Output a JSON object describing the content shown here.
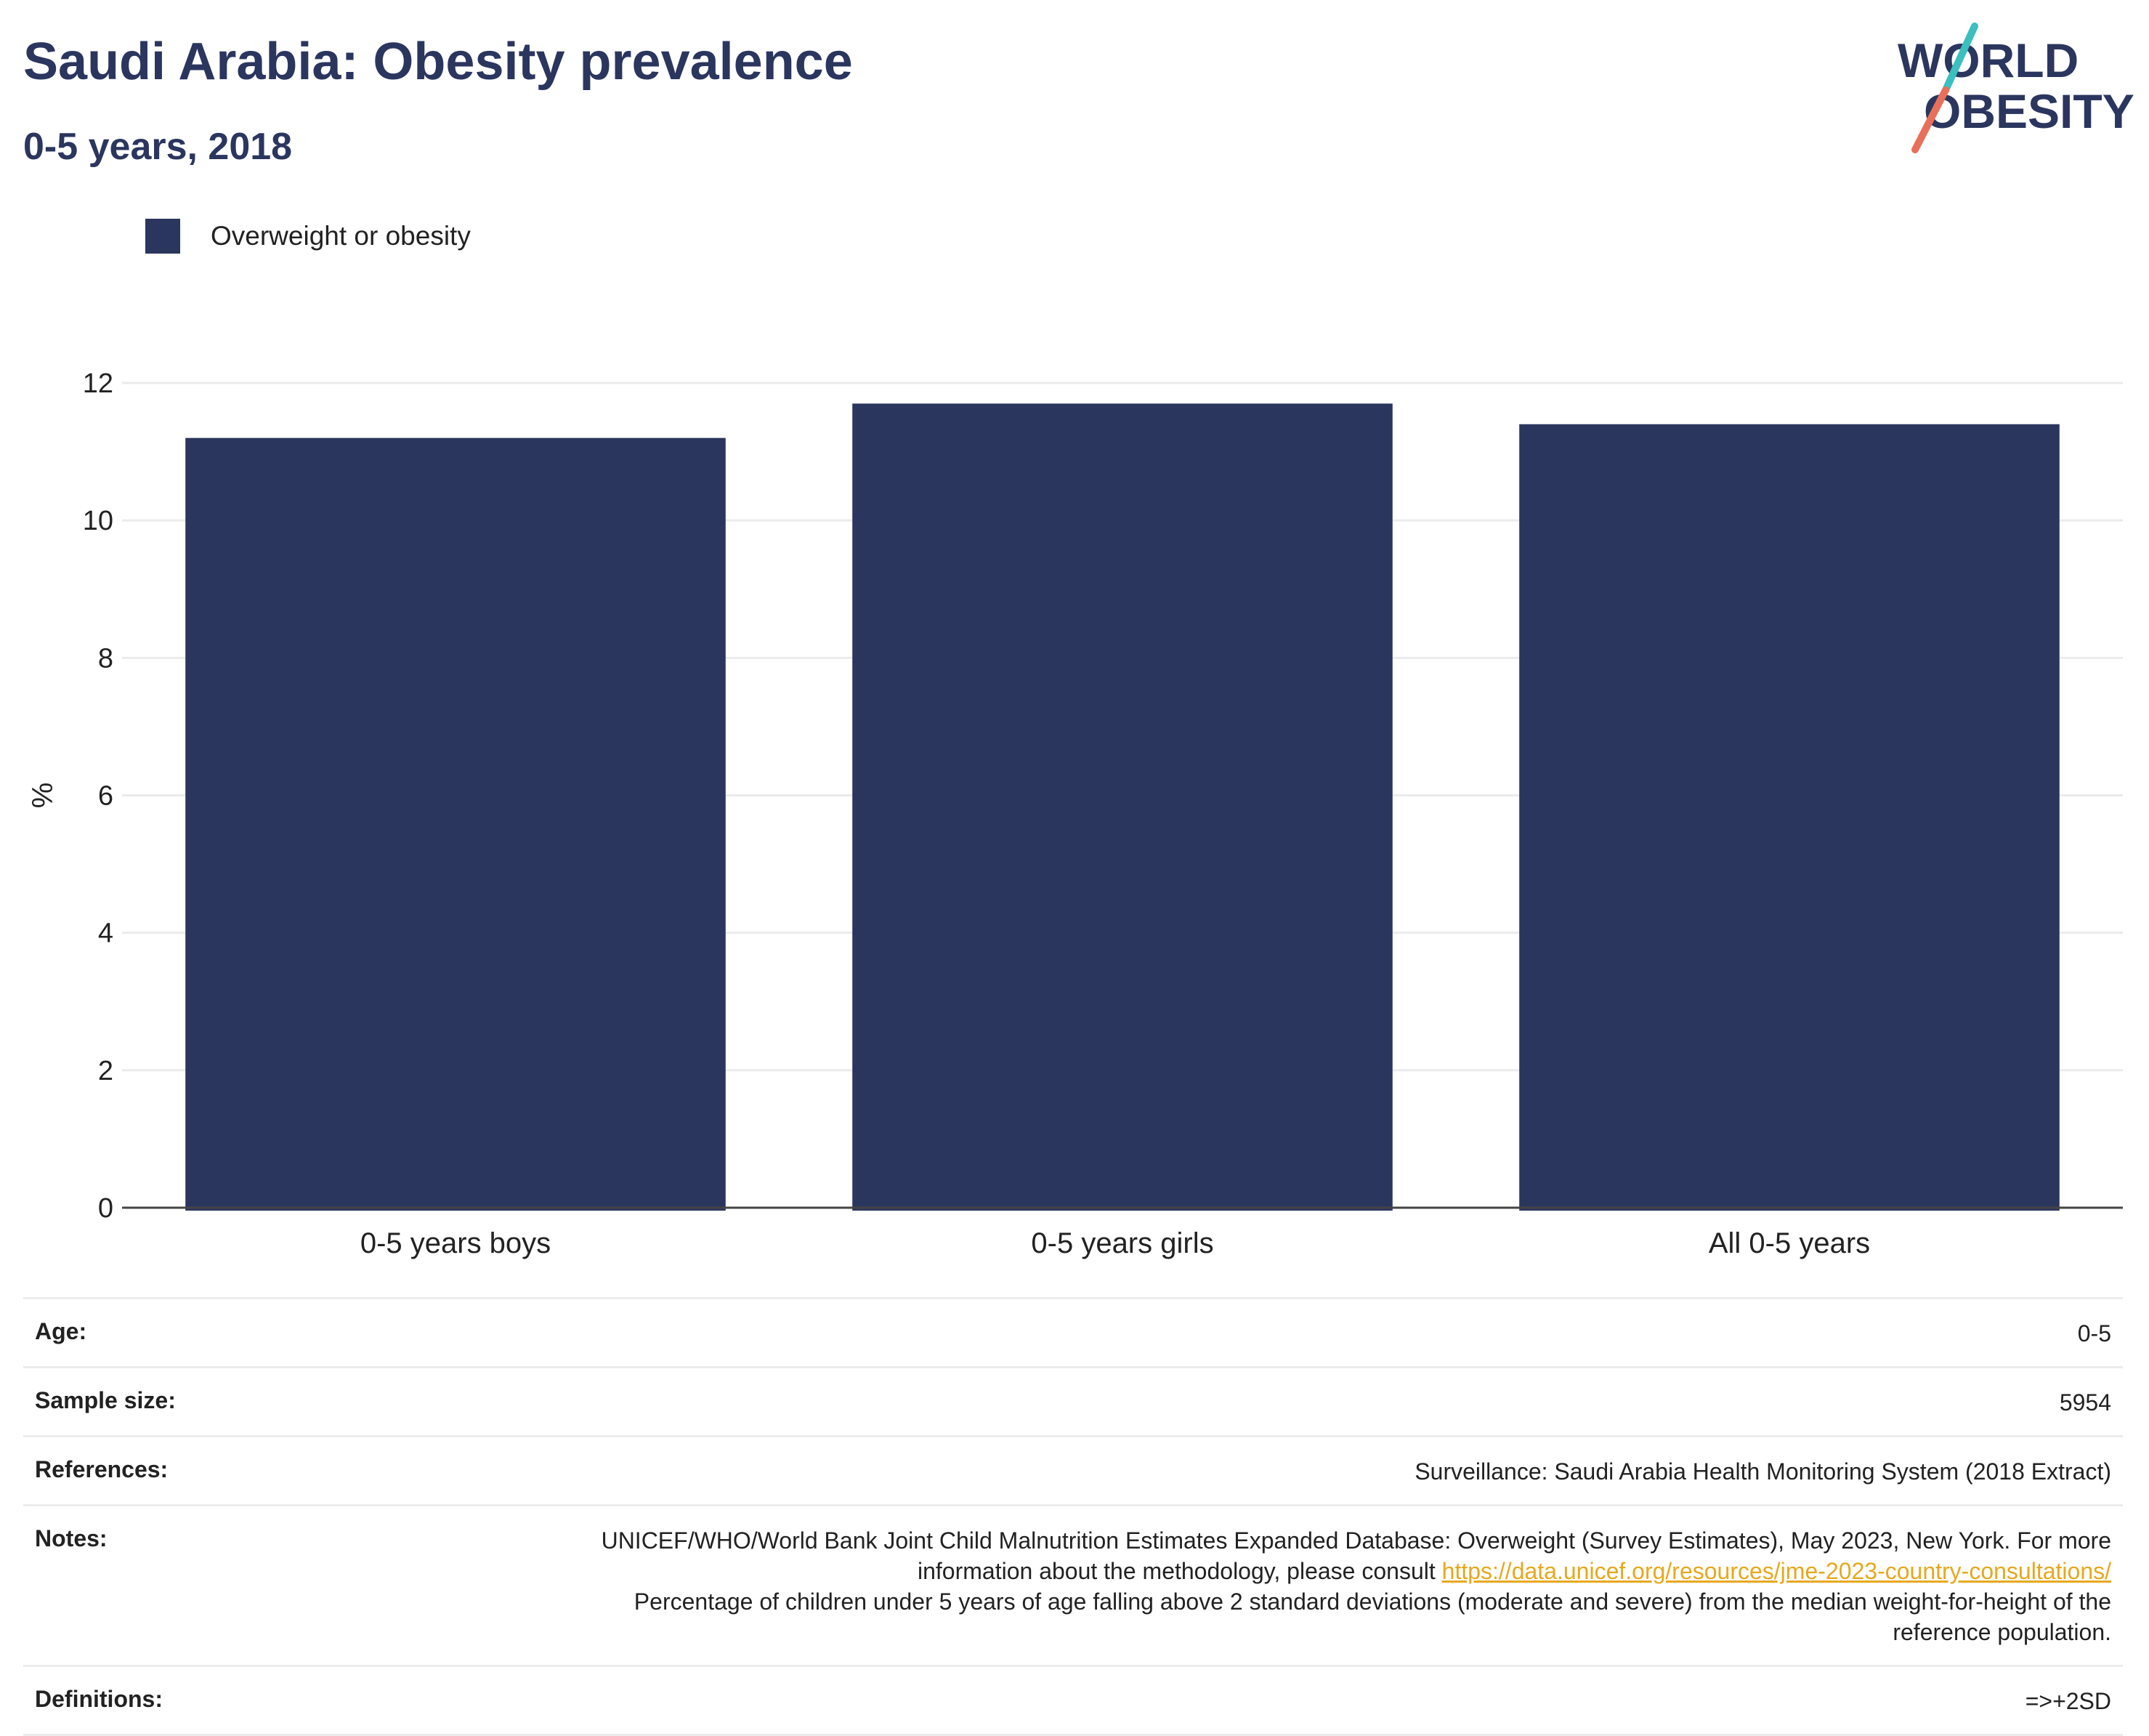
{
  "header": {
    "title": "Saudi Arabia: Obesity prevalence",
    "subtitle": "0-5 years, 2018"
  },
  "logo": {
    "line1": "WORLD",
    "line2": "OBESITY",
    "colors": {
      "text": "#2b365f",
      "slash_top": "#3bbfbf",
      "slash_bottom": "#e8705a"
    }
  },
  "chart_data": {
    "type": "bar",
    "categories": [
      "0-5 years boys",
      "0-5 years girls",
      "All 0-5 years"
    ],
    "series": [
      {
        "name": "Overweight or obesity",
        "values": [
          11.2,
          11.7,
          11.4
        ],
        "color": "#2b365f"
      }
    ],
    "xlabel": "",
    "ylabel": "%",
    "ylim": [
      0,
      12
    ],
    "yticks": [
      0,
      2,
      4,
      6,
      8,
      10,
      12
    ],
    "grid": true,
    "legend_position": "top-left"
  },
  "info": {
    "age_label": "Age:",
    "age_value": "0-5",
    "sample_label": "Sample size:",
    "sample_value": "5954",
    "references_label": "References:",
    "references_value": "Surveillance: Saudi Arabia Health Monitoring System (2018 Extract)",
    "notes_label": "Notes:",
    "notes_part1": "UNICEF/WHO/World Bank Joint Child Malnutrition Estimates Expanded Database: Overweight (Survey Estimates), May 2023, New York. For more information about the methodology, please consult",
    "notes_link": "https://data.unicef.org/resources/jme-2023-country-consultations/",
    "notes_part2": "Percentage of children under 5 years of age falling above 2 standard deviations (moderate and severe) from the median weight-for-height of the reference population.",
    "definitions_label": "Definitions:",
    "definitions_value": "=>+2SD"
  }
}
